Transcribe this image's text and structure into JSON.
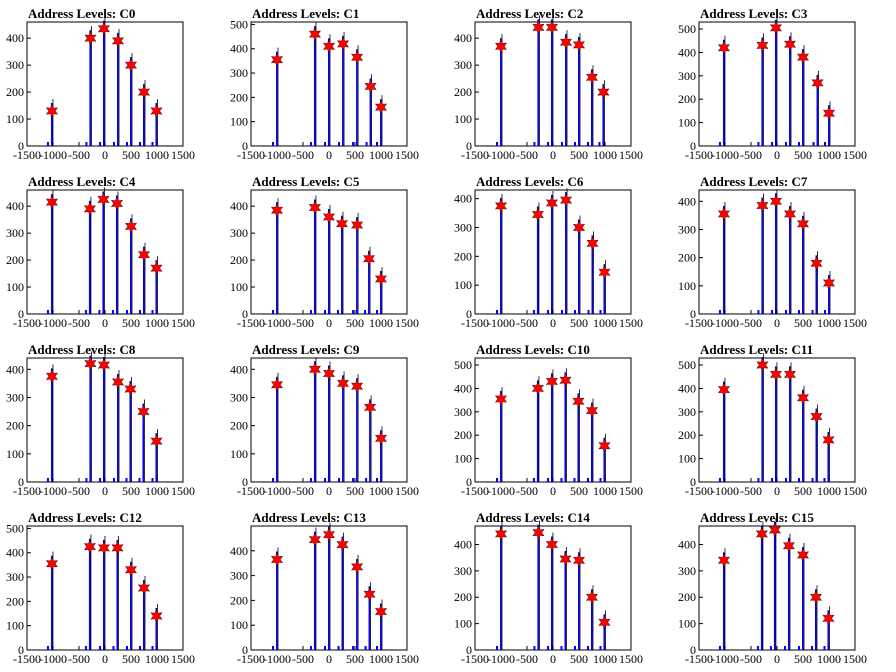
{
  "figure": {
    "background": "#ffffff",
    "histogram_color": "#0000ff",
    "marker_color": "#ff0000",
    "marker_shape": "star"
  },
  "chart_data": [
    {
      "title": "Address Levels: C0",
      "type": "bar",
      "xlim": [
        -1500,
        1500
      ],
      "ylim": [
        0,
        460
      ],
      "xticks": [
        -1500,
        -1000,
        -500,
        0,
        500,
        1000,
        1500
      ],
      "yticks": [
        0,
        100,
        200,
        300,
        400
      ],
      "peaks": [
        {
          "x": -1020,
          "value": 130
        },
        {
          "x": -280,
          "value": 400
        },
        {
          "x": -20,
          "value": 435
        },
        {
          "x": 250,
          "value": 390
        },
        {
          "x": 500,
          "value": 300
        },
        {
          "x": 750,
          "value": 200
        },
        {
          "x": 990,
          "value": 130
        }
      ]
    },
    {
      "title": "Address Levels: C1",
      "type": "bar",
      "xlim": [
        -1500,
        1500
      ],
      "ylim": [
        0,
        510
      ],
      "xticks": [
        -1500,
        -1000,
        -500,
        0,
        500,
        1000,
        1500
      ],
      "yticks": [
        0,
        100,
        200,
        300,
        400,
        500
      ],
      "peaks": [
        {
          "x": -1000,
          "value": 355
        },
        {
          "x": -270,
          "value": 460
        },
        {
          "x": 0,
          "value": 410
        },
        {
          "x": 270,
          "value": 420
        },
        {
          "x": 540,
          "value": 365
        },
        {
          "x": 800,
          "value": 245
        },
        {
          "x": 1000,
          "value": 160
        }
      ]
    },
    {
      "title": "Address Levels: C2",
      "type": "bar",
      "xlim": [
        -1500,
        1500
      ],
      "ylim": [
        0,
        460
      ],
      "xticks": [
        -1500,
        -1000,
        -500,
        0,
        500,
        1000,
        1500
      ],
      "yticks": [
        0,
        100,
        200,
        300,
        400
      ],
      "peaks": [
        {
          "x": -1000,
          "value": 370
        },
        {
          "x": -280,
          "value": 440
        },
        {
          "x": -20,
          "value": 440
        },
        {
          "x": 250,
          "value": 385
        },
        {
          "x": 500,
          "value": 375
        },
        {
          "x": 750,
          "value": 255
        },
        {
          "x": 970,
          "value": 200
        }
      ]
    },
    {
      "title": "Address Levels: C3",
      "type": "bar",
      "xlim": [
        -1500,
        1500
      ],
      "ylim": [
        0,
        530
      ],
      "xticks": [
        -1500,
        -1000,
        -500,
        0,
        500,
        1000,
        1500
      ],
      "yticks": [
        0,
        100,
        200,
        300,
        400,
        500
      ],
      "peaks": [
        {
          "x": -1020,
          "value": 420
        },
        {
          "x": -280,
          "value": 430
        },
        {
          "x": -20,
          "value": 505
        },
        {
          "x": 250,
          "value": 435
        },
        {
          "x": 500,
          "value": 380
        },
        {
          "x": 780,
          "value": 270
        },
        {
          "x": 1000,
          "value": 140
        }
      ]
    },
    {
      "title": "Address Levels: C4",
      "type": "bar",
      "xlim": [
        -1500,
        1500
      ],
      "ylim": [
        0,
        460
      ],
      "xticks": [
        -1500,
        -1000,
        -500,
        0,
        500,
        1000,
        1500
      ],
      "yticks": [
        0,
        100,
        200,
        300,
        400
      ],
      "peaks": [
        {
          "x": -1020,
          "value": 415
        },
        {
          "x": -290,
          "value": 390
        },
        {
          "x": -30,
          "value": 425
        },
        {
          "x": 230,
          "value": 410
        },
        {
          "x": 500,
          "value": 325
        },
        {
          "x": 750,
          "value": 220
        },
        {
          "x": 990,
          "value": 170
        }
      ]
    },
    {
      "title": "Address Levels: C5",
      "type": "bar",
      "xlim": [
        -1500,
        1500
      ],
      "ylim": [
        0,
        460
      ],
      "xticks": [
        -1500,
        -1000,
        -500,
        0,
        500,
        1000,
        1500
      ],
      "yticks": [
        0,
        100,
        200,
        300,
        400
      ],
      "peaks": [
        {
          "x": -1000,
          "value": 385
        },
        {
          "x": -270,
          "value": 395
        },
        {
          "x": 0,
          "value": 360
        },
        {
          "x": 250,
          "value": 335
        },
        {
          "x": 540,
          "value": 330
        },
        {
          "x": 770,
          "value": 205
        },
        {
          "x": 1000,
          "value": 130
        }
      ]
    },
    {
      "title": "Address Levels: C6",
      "type": "bar",
      "xlim": [
        -1500,
        1500
      ],
      "ylim": [
        0,
        430
      ],
      "xticks": [
        -1500,
        -1000,
        -500,
        0,
        500,
        1000,
        1500
      ],
      "yticks": [
        0,
        100,
        200,
        300,
        400
      ],
      "peaks": [
        {
          "x": -1000,
          "value": 375
        },
        {
          "x": -290,
          "value": 345
        },
        {
          "x": -20,
          "value": 385
        },
        {
          "x": 250,
          "value": 395
        },
        {
          "x": 500,
          "value": 300
        },
        {
          "x": 760,
          "value": 245
        },
        {
          "x": 990,
          "value": 145
        }
      ]
    },
    {
      "title": "Address Levels: C7",
      "type": "bar",
      "xlim": [
        -1500,
        1500
      ],
      "ylim": [
        0,
        440
      ],
      "xticks": [
        -1500,
        -1000,
        -500,
        0,
        500,
        1000,
        1500
      ],
      "yticks": [
        0,
        100,
        200,
        300,
        400
      ],
      "peaks": [
        {
          "x": -1020,
          "value": 355
        },
        {
          "x": -280,
          "value": 385
        },
        {
          "x": -20,
          "value": 400
        },
        {
          "x": 250,
          "value": 355
        },
        {
          "x": 500,
          "value": 320
        },
        {
          "x": 760,
          "value": 180
        },
        {
          "x": 1000,
          "value": 110
        }
      ]
    },
    {
      "title": "Address Levels: C8",
      "type": "bar",
      "xlim": [
        -1500,
        1500
      ],
      "ylim": [
        0,
        440
      ],
      "xticks": [
        -1500,
        -1000,
        -500,
        0,
        500,
        1000,
        1500
      ],
      "yticks": [
        0,
        100,
        200,
        300,
        400
      ],
      "peaks": [
        {
          "x": -1020,
          "value": 375
        },
        {
          "x": -280,
          "value": 420
        },
        {
          "x": -20,
          "value": 415
        },
        {
          "x": 250,
          "value": 355
        },
        {
          "x": 490,
          "value": 330
        },
        {
          "x": 740,
          "value": 250
        },
        {
          "x": 990,
          "value": 145
        }
      ]
    },
    {
      "title": "Address Levels: C9",
      "type": "bar",
      "xlim": [
        -1500,
        1500
      ],
      "ylim": [
        0,
        440
      ],
      "xticks": [
        -1500,
        -1000,
        -500,
        0,
        500,
        1000,
        1500
      ],
      "yticks": [
        0,
        100,
        200,
        300,
        400
      ],
      "peaks": [
        {
          "x": -1000,
          "value": 345
        },
        {
          "x": -270,
          "value": 400
        },
        {
          "x": 0,
          "value": 385
        },
        {
          "x": 270,
          "value": 350
        },
        {
          "x": 540,
          "value": 340
        },
        {
          "x": 790,
          "value": 265
        },
        {
          "x": 1000,
          "value": 155
        }
      ]
    },
    {
      "title": "Address Levels: C10",
      "type": "bar",
      "xlim": [
        -1500,
        1500
      ],
      "ylim": [
        0,
        530
      ],
      "xticks": [
        -1500,
        -1000,
        -500,
        0,
        500,
        1000,
        1500
      ],
      "yticks": [
        0,
        100,
        200,
        300,
        400,
        500
      ],
      "peaks": [
        {
          "x": -1000,
          "value": 355
        },
        {
          "x": -290,
          "value": 400
        },
        {
          "x": -20,
          "value": 430
        },
        {
          "x": 240,
          "value": 435
        },
        {
          "x": 490,
          "value": 345
        },
        {
          "x": 750,
          "value": 305
        },
        {
          "x": 990,
          "value": 155
        }
      ]
    },
    {
      "title": "Address Levels: C11",
      "type": "bar",
      "xlim": [
        -1500,
        1500
      ],
      "ylim": [
        0,
        530
      ],
      "xticks": [
        -1500,
        -1000,
        -500,
        0,
        500,
        1000,
        1500
      ],
      "yticks": [
        0,
        100,
        200,
        300,
        400,
        500
      ],
      "peaks": [
        {
          "x": -1020,
          "value": 395
        },
        {
          "x": -280,
          "value": 500
        },
        {
          "x": -20,
          "value": 460
        },
        {
          "x": 250,
          "value": 460
        },
        {
          "x": 500,
          "value": 360
        },
        {
          "x": 760,
          "value": 280
        },
        {
          "x": 990,
          "value": 180
        }
      ]
    },
    {
      "title": "Address Levels: C12",
      "type": "bar",
      "xlim": [
        -1500,
        1500
      ],
      "ylim": [
        0,
        510
      ],
      "xticks": [
        -1500,
        -1000,
        -500,
        0,
        500,
        1000,
        1500
      ],
      "yticks": [
        0,
        100,
        200,
        300,
        400,
        500
      ],
      "peaks": [
        {
          "x": -1020,
          "value": 355
        },
        {
          "x": -290,
          "value": 425
        },
        {
          "x": -20,
          "value": 420
        },
        {
          "x": 240,
          "value": 420
        },
        {
          "x": 500,
          "value": 330
        },
        {
          "x": 750,
          "value": 255
        },
        {
          "x": 990,
          "value": 140
        }
      ]
    },
    {
      "title": "Address Levels: C13",
      "type": "bar",
      "xlim": [
        -1500,
        1500
      ],
      "ylim": [
        0,
        500
      ],
      "xticks": [
        -1500,
        -1000,
        -500,
        0,
        500,
        1000,
        1500
      ],
      "yticks": [
        0,
        100,
        200,
        300,
        400
      ],
      "peaks": [
        {
          "x": -1000,
          "value": 365
        },
        {
          "x": -270,
          "value": 445
        },
        {
          "x": 0,
          "value": 465
        },
        {
          "x": 260,
          "value": 425
        },
        {
          "x": 540,
          "value": 335
        },
        {
          "x": 780,
          "value": 225
        },
        {
          "x": 1000,
          "value": 155
        }
      ]
    },
    {
      "title": "Address Levels: C14",
      "type": "bar",
      "xlim": [
        -1500,
        1500
      ],
      "ylim": [
        0,
        470
      ],
      "xticks": [
        -1500,
        -1000,
        -500,
        0,
        500,
        1000,
        1500
      ],
      "yticks": [
        0,
        100,
        200,
        300,
        400
      ],
      "peaks": [
        {
          "x": -1000,
          "value": 440
        },
        {
          "x": -280,
          "value": 445
        },
        {
          "x": -20,
          "value": 400
        },
        {
          "x": 240,
          "value": 345
        },
        {
          "x": 500,
          "value": 340
        },
        {
          "x": 750,
          "value": 200
        },
        {
          "x": 990,
          "value": 105
        }
      ]
    },
    {
      "title": "Address Levels: C15",
      "type": "bar",
      "xlim": [
        -1500,
        1500
      ],
      "ylim": [
        0,
        470
      ],
      "xticks": [
        -1500,
        -1000,
        -500,
        0,
        500,
        1000,
        1500
      ],
      "yticks": [
        0,
        100,
        200,
        300,
        400
      ],
      "peaks": [
        {
          "x": -1020,
          "value": 340
        },
        {
          "x": -290,
          "value": 440
        },
        {
          "x": -40,
          "value": 455
        },
        {
          "x": 230,
          "value": 395
        },
        {
          "x": 500,
          "value": 360
        },
        {
          "x": 750,
          "value": 200
        },
        {
          "x": 990,
          "value": 120
        }
      ]
    }
  ]
}
